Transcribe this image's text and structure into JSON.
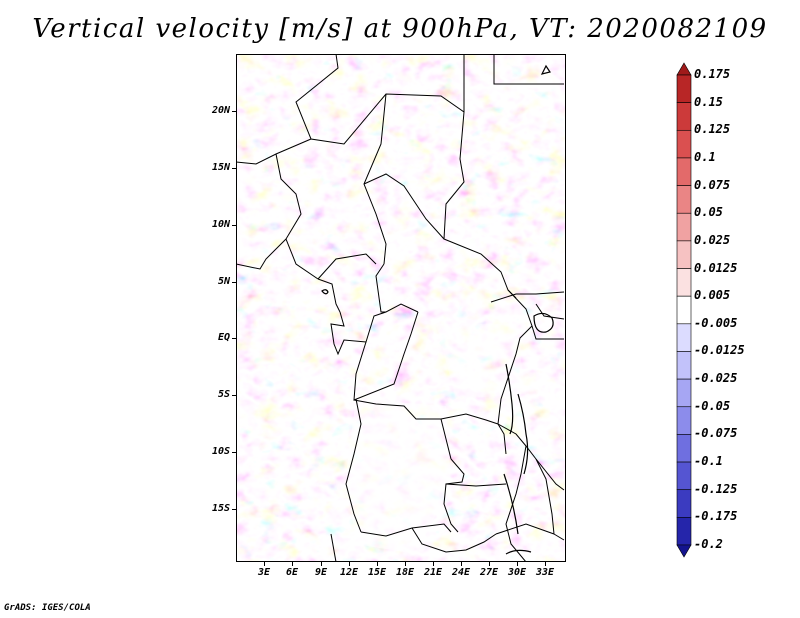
{
  "title": "Vertical velocity [m/s] at 900hPa, VT: 2020082109",
  "footer": "GrADS: IGES/COLA",
  "map": {
    "lat_labels": [
      "20N",
      "15N",
      "10N",
      "5N",
      "EQ",
      "5S",
      "10S",
      "15S"
    ],
    "lon_labels": [
      "3E",
      "6E",
      "9E",
      "12E",
      "15E",
      "18E",
      "21E",
      "24E",
      "27E",
      "30E",
      "33E"
    ]
  },
  "colorbar": {
    "labels": [
      "0.175",
      "0.15",
      "0.125",
      "0.1",
      "0.075",
      "0.05",
      "0.025",
      "0.0125",
      "0.005",
      "-0.005",
      "-0.0125",
      "-0.025",
      "-0.05",
      "-0.075",
      "-0.1",
      "-0.125",
      "-0.175",
      "-0.2"
    ],
    "colors": [
      "#a01a1a",
      "#b82626",
      "#cc3a3a",
      "#da5050",
      "#e36a6a",
      "#ea8585",
      "#f0a2a2",
      "#f6c2c2",
      "#fbe1e1",
      "#ffffff",
      "#dcdcff",
      "#c2c2fa",
      "#a6a6f3",
      "#8c8ceb",
      "#6f6fe0",
      "#5555d2",
      "#3b3bc0",
      "#2525aa",
      "#14148e"
    ]
  }
}
